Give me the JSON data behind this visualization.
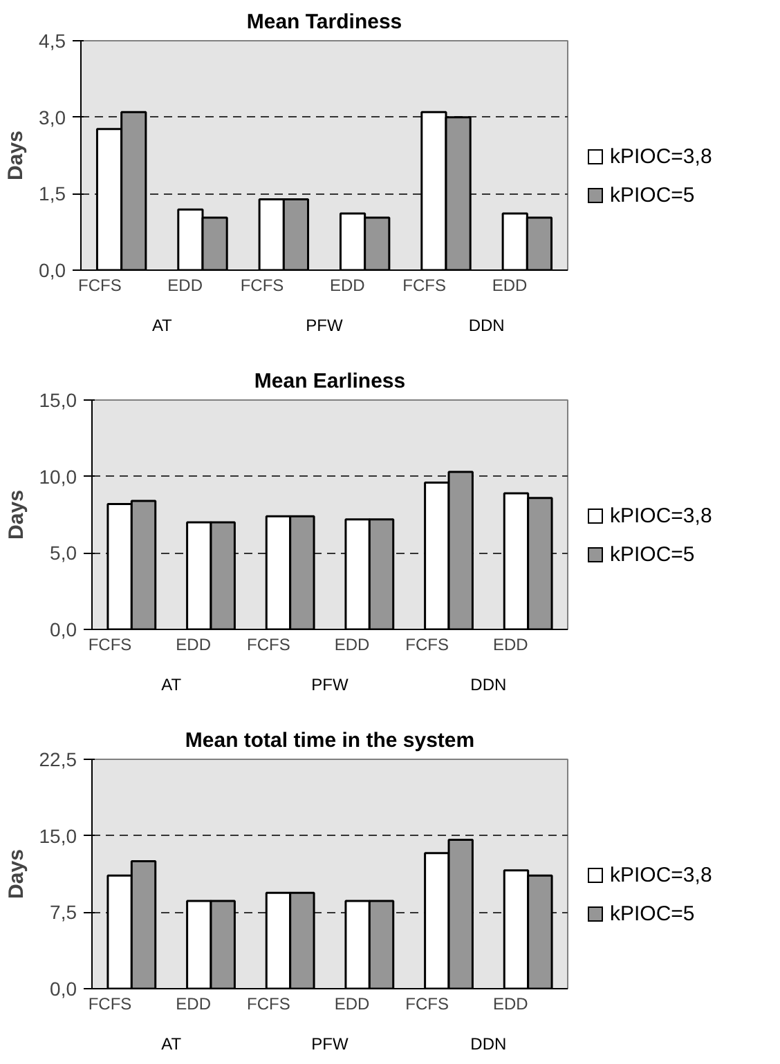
{
  "chart_data": [
    {
      "type": "bar",
      "title": "Mean Tardiness",
      "ylabel": "Days",
      "categories": [
        "FCFS",
        "EDD",
        "FCFS",
        "EDD",
        "FCFS",
        "EDD"
      ],
      "annotations": [
        "AT",
        "PFW",
        "DDN"
      ],
      "series": [
        {
          "name": "kPIOC=3,8",
          "color": "#ffffff",
          "values": [
            2.77,
            1.19,
            1.39,
            1.11,
            3.1,
            1.11
          ]
        },
        {
          "name": "kPIOC=5",
          "color": "#969696",
          "values": [
            3.1,
            1.03,
            1.39,
            1.03,
            3.0,
            1.03
          ]
        }
      ],
      "ylim": [
        0,
        4.5
      ],
      "yticks": [
        {
          "value": 0,
          "label": "0,0"
        },
        {
          "value": 1.5,
          "label": "1,5"
        },
        {
          "value": 3.0,
          "label": "3,0"
        },
        {
          "value": 4.5,
          "label": "4,5"
        }
      ],
      "grid": "y",
      "legend": "right"
    },
    {
      "type": "bar",
      "title": "Mean Earliness",
      "ylabel": "Days",
      "categories": [
        "FCFS",
        "EDD",
        "FCFS",
        "EDD",
        "FCFS",
        "EDD"
      ],
      "annotations": [
        "AT",
        "PFW",
        "DDN"
      ],
      "series": [
        {
          "name": "kPIOC=3,8",
          "color": "#ffffff",
          "values": [
            8.2,
            7.0,
            7.4,
            7.2,
            9.6,
            8.9
          ]
        },
        {
          "name": "kPIOC=5",
          "color": "#969696",
          "values": [
            8.4,
            7.0,
            7.4,
            7.2,
            10.3,
            8.6
          ]
        }
      ],
      "ylim": [
        0,
        15
      ],
      "yticks": [
        {
          "value": 0,
          "label": "0,0"
        },
        {
          "value": 5,
          "label": "5,0"
        },
        {
          "value": 10,
          "label": "10,0"
        },
        {
          "value": 15,
          "label": "15,0"
        }
      ],
      "grid": "y",
      "legend": "right"
    },
    {
      "type": "bar",
      "title": "Mean total time in the system",
      "ylabel": "Days",
      "categories": [
        "FCFS",
        "EDD",
        "FCFS",
        "EDD",
        "FCFS",
        "EDD"
      ],
      "annotations": [
        "AT",
        "PFW",
        "DDN"
      ],
      "series": [
        {
          "name": "kPIOC=3,8",
          "color": "#ffffff",
          "values": [
            11.1,
            8.6,
            9.4,
            8.6,
            13.3,
            11.6
          ]
        },
        {
          "name": "kPIOC=5",
          "color": "#969696",
          "values": [
            12.5,
            8.6,
            9.4,
            8.6,
            14.6,
            11.1
          ]
        }
      ],
      "ylim": [
        0,
        22.5
      ],
      "yticks": [
        {
          "value": 0,
          "label": "0,0"
        },
        {
          "value": 7.5,
          "label": "7,5"
        },
        {
          "value": 15,
          "label": "15,0"
        },
        {
          "value": 22.5,
          "label": "22,5"
        }
      ],
      "grid": "y",
      "legend": "right"
    }
  ]
}
